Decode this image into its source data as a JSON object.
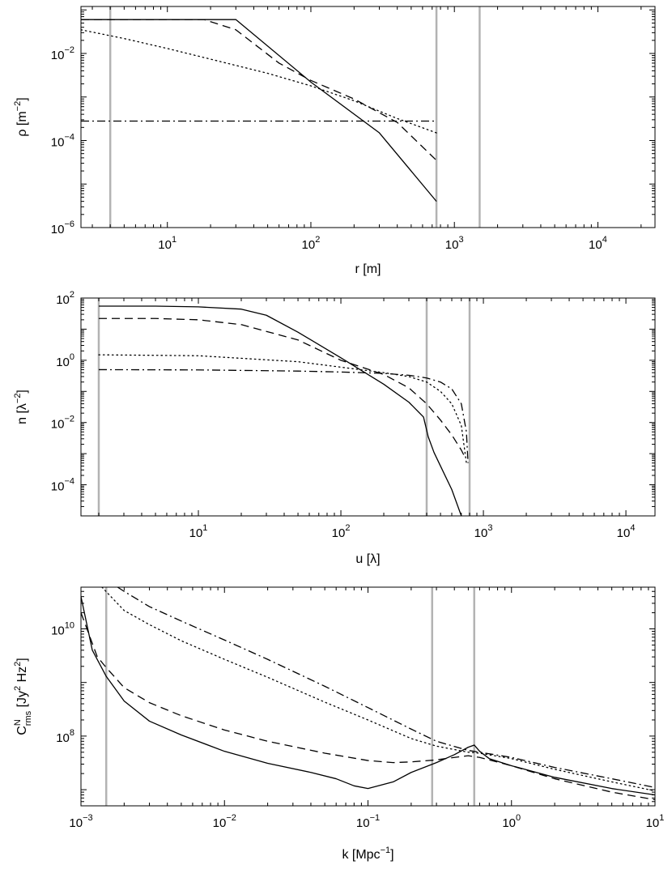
{
  "chart_data": [
    {
      "id": "rho",
      "type": "line",
      "xlabel": "r [m]",
      "ylabel": {
        "base": "ρ [m",
        "sup": "−2",
        "tail": "]"
      },
      "xscale": "log",
      "yscale": "log",
      "xlim": [
        2.5,
        25000
      ],
      "ylim": [
        1e-06,
        0.12
      ],
      "xticks": [
        {
          "base": "10",
          "exp": "1",
          "v": 10
        },
        {
          "base": "10",
          "exp": "2",
          "v": 100
        },
        {
          "base": "10",
          "exp": "3",
          "v": 1000
        },
        {
          "base": "10",
          "exp": "4",
          "v": 10000
        }
      ],
      "yticks": [
        {
          "base": "10",
          "exp": "-6",
          "v": 1e-06
        },
        {
          "base": "10",
          "exp": "-4",
          "v": 0.0001
        },
        {
          "base": "10",
          "exp": "-2",
          "v": 0.01
        }
      ],
      "vlines": [
        4,
        750,
        1500
      ],
      "series": [
        {
          "style": "solid",
          "x": [
            2.5,
            30,
            100,
            300,
            750
          ],
          "y": [
            0.06,
            0.06,
            0.0022,
            0.00015,
            4e-06
          ]
        },
        {
          "style": "dashed",
          "x": [
            2.5,
            18,
            30,
            60,
            100,
            200,
            400,
            750
          ],
          "y": [
            0.06,
            0.06,
            0.035,
            0.006,
            0.0024,
            0.0009,
            0.00026,
            3.5e-05
          ]
        },
        {
          "style": "dotted",
          "x": [
            2.5,
            5,
            10,
            20,
            50,
            100,
            200,
            400,
            750
          ],
          "y": [
            0.035,
            0.022,
            0.013,
            0.0074,
            0.0035,
            0.0018,
            0.00082,
            0.00032,
            0.00015
          ]
        },
        {
          "style": "dashdot",
          "x": [
            2.5,
            750
          ],
          "y": [
            0.00028,
            0.00028
          ]
        }
      ]
    },
    {
      "id": "n",
      "type": "line",
      "xlabel": "u [λ]",
      "ylabel": {
        "base": "n [λ",
        "sup": "−2",
        "tail": "]"
      },
      "xscale": "log",
      "yscale": "log",
      "xlim": [
        1.5,
        16000
      ],
      "ylim": [
        1e-05,
        100
      ],
      "xticks": [
        {
          "base": "10",
          "exp": "1",
          "v": 10
        },
        {
          "base": "10",
          "exp": "2",
          "v": 100
        },
        {
          "base": "10",
          "exp": "3",
          "v": 1000
        },
        {
          "base": "10",
          "exp": "4",
          "v": 10000
        }
      ],
      "yticks": [
        {
          "base": "10",
          "exp": "-4",
          "v": 0.0001
        },
        {
          "base": "10",
          "exp": "-2",
          "v": 0.01
        },
        {
          "base": "10",
          "exp": "0",
          "v": 1
        },
        {
          "base": "10",
          "exp": "2",
          "v": 100
        }
      ],
      "vlines": [
        2,
        400,
        800
      ],
      "series": [
        {
          "style": "solid",
          "x": [
            2,
            5,
            10,
            20,
            30,
            50,
            100,
            200,
            300,
            380,
            410,
            450,
            500,
            600,
            700
          ],
          "y": [
            55,
            55,
            52,
            44,
            28,
            8,
            1.2,
            0.17,
            0.045,
            0.015,
            0.0035,
            0.0011,
            0.0004,
            7e-05,
            1e-05
          ]
        },
        {
          "style": "dashed",
          "x": [
            2,
            5,
            10,
            20,
            50,
            100,
            200,
            300,
            400,
            500,
            600,
            700,
            750
          ],
          "y": [
            22,
            22,
            20,
            14,
            4.5,
            1.0,
            0.35,
            0.13,
            0.04,
            0.012,
            0.004,
            0.0013,
            0.0007
          ]
        },
        {
          "style": "dotted",
          "x": [
            2,
            10,
            50,
            100,
            200,
            300,
            400,
            500,
            600,
            700,
            760
          ],
          "y": [
            1.5,
            1.4,
            0.9,
            0.6,
            0.4,
            0.3,
            0.2,
            0.1,
            0.04,
            0.008,
            0.0005
          ]
        },
        {
          "style": "dashdot",
          "x": [
            2,
            10,
            50,
            100,
            200,
            300,
            400,
            500,
            600,
            700,
            760,
            780
          ],
          "y": [
            0.5,
            0.49,
            0.45,
            0.42,
            0.38,
            0.33,
            0.27,
            0.2,
            0.12,
            0.04,
            0.005,
            0.0005
          ]
        }
      ]
    },
    {
      "id": "crms",
      "type": "line",
      "xlabel": {
        "base": "k [Mpc",
        "sup": "−1",
        "tail": "]"
      },
      "ylabel": {
        "base": "C",
        "sup": "N",
        "sub": "rms",
        "tail": " [Jy",
        "sup2": "2",
        "tail2": " Hz",
        "sup3": "2",
        "tail3": "]"
      },
      "xscale": "log",
      "yscale": "log",
      "xlim": [
        0.001,
        10
      ],
      "ylim": [
        5000000.0,
        60000000000.0
      ],
      "xticks": [
        {
          "base": "10",
          "exp": "-3",
          "v": 0.001
        },
        {
          "base": "10",
          "exp": "-2",
          "v": 0.01
        },
        {
          "base": "10",
          "exp": "-1",
          "v": 0.1
        },
        {
          "base": "10",
          "exp": "0",
          "v": 1
        },
        {
          "base": "10",
          "exp": "1",
          "v": 10
        }
      ],
      "yticks": [
        {
          "base": "10",
          "exp": "8",
          "v": 100000000
        },
        {
          "base": "10",
          "exp": "10",
          "v": 10000000000
        }
      ],
      "vlines": [
        0.0015,
        0.28,
        0.55
      ],
      "series": [
        {
          "style": "solid",
          "x": [
            0.001,
            0.0012,
            0.0015,
            0.002,
            0.003,
            0.005,
            0.01,
            0.02,
            0.04,
            0.06,
            0.08,
            0.1,
            0.15,
            0.2,
            0.3,
            0.4,
            0.5,
            0.55,
            0.6,
            0.7,
            1,
            2,
            5,
            10
          ],
          "y": [
            40000000000.0,
            4000000000.0,
            1300000000.0,
            450000000.0,
            190000000.0,
            105000000.0,
            52000000.0,
            31000000.0,
            21000000.0,
            16000000.0,
            11800000.0,
            10500000.0,
            14000000.0,
            21000000.0,
            32000000.0,
            45000000.0,
            62000000.0,
            68000000.0,
            52000000.0,
            38000000.0,
            28000000.0,
            17000000.0,
            10500000.0,
            8000000.0
          ]
        },
        {
          "style": "dashed",
          "x": [
            0.001,
            0.0013,
            0.0015,
            0.002,
            0.003,
            0.005,
            0.01,
            0.02,
            0.05,
            0.1,
            0.15,
            0.2,
            0.3,
            0.4,
            0.5,
            0.6,
            1,
            2,
            5,
            10
          ],
          "y": [
            20000000000.0,
            3000000000.0,
            1900000000.0,
            800000000.0,
            420000000.0,
            240000000.0,
            130000000.0,
            80000000.0,
            48000000.0,
            35000000.0,
            32000000.0,
            33000000.0,
            36000000.0,
            40000000.0,
            43000000.0,
            40000000.0,
            28000000.0,
            16000000.0,
            9000000.0,
            6500000.0
          ]
        },
        {
          "style": "dotted",
          "x": [
            0.0014,
            0.002,
            0.003,
            0.005,
            0.01,
            0.02,
            0.05,
            0.1,
            0.2,
            0.3,
            0.5,
            0.6,
            1,
            2,
            5,
            10
          ],
          "y": [
            60000000000.0,
            22000000000.0,
            12000000000.0,
            6000000000.0,
            2700000000.0,
            1250000000.0,
            430000000.0,
            200000000.0,
            90000000.0,
            65000000.0,
            50000000.0,
            48000000.0,
            38000000.0,
            24000000.0,
            14000000.0,
            9500000.0
          ]
        },
        {
          "style": "dashdot",
          "x": [
            0.0018,
            0.002,
            0.003,
            0.005,
            0.01,
            0.02,
            0.05,
            0.1,
            0.2,
            0.3,
            0.5,
            0.6,
            1,
            2,
            5,
            10
          ],
          "y": [
            60000000000.0,
            50000000000.0,
            26000000000.0,
            14000000000.0,
            6200000000.0,
            2700000000.0,
            850000000.0,
            340000000.0,
            135000000.0,
            80000000.0,
            54000000.0,
            50000000.0,
            40000000.0,
            26000000.0,
            16000000.0,
            11000000.0
          ]
        }
      ]
    }
  ]
}
